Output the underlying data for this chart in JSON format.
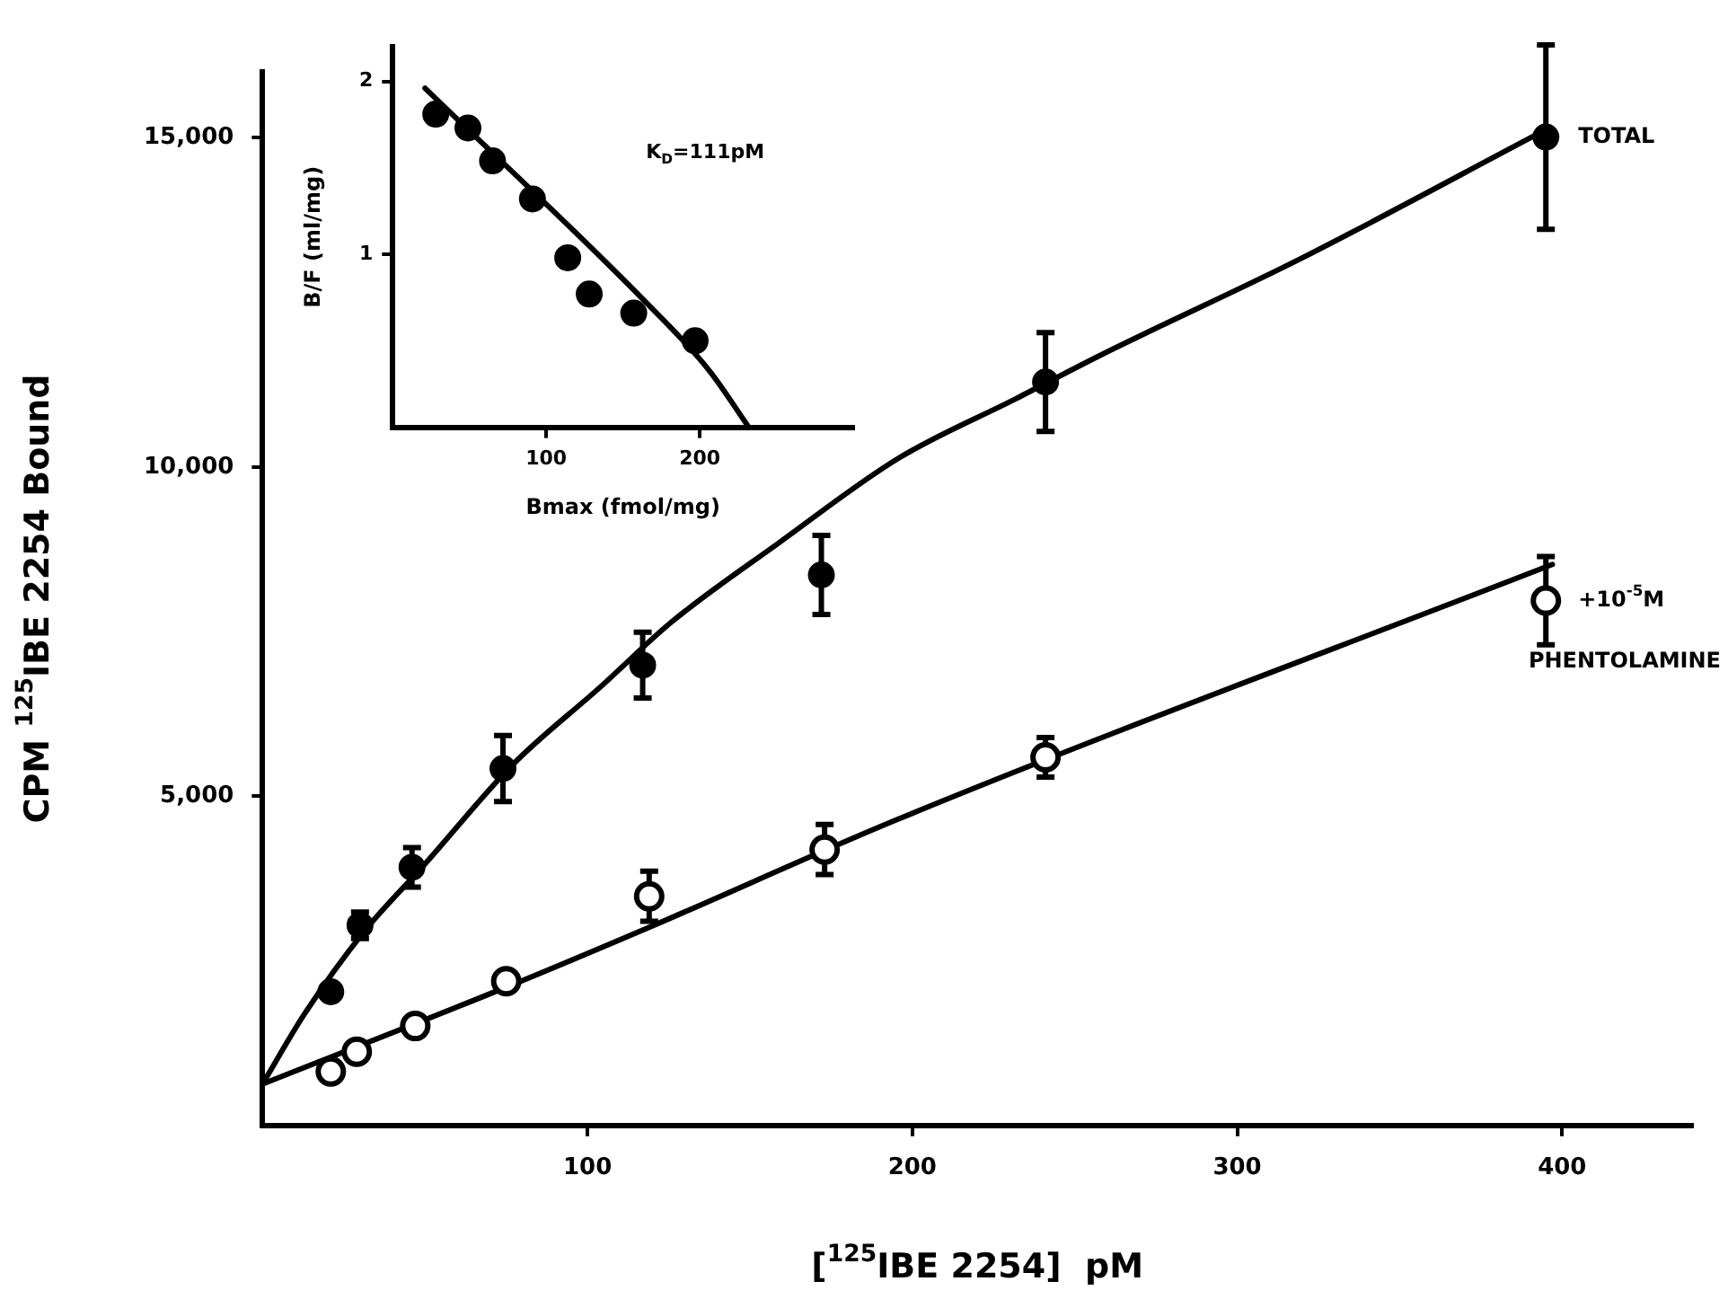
{
  "chart_data": [
    {
      "type": "scatter",
      "xlabel": "[$^{125}$IBE 2254]  pM",
      "ylabel": "CPM $^{125}$IBE 2254 Bound",
      "xlim": [
        0,
        440
      ],
      "ylim": [
        0,
        16000
      ],
      "xticks": [
        100,
        200,
        300,
        400
      ],
      "yticks": [
        {
          "value": 5000,
          "label": "5,000"
        },
        {
          "value": 10000,
          "label": "10,000"
        },
        {
          "value": 15000,
          "label": "15,000"
        }
      ],
      "grid": false,
      "legend": false,
      "marker": "circle",
      "series": [
        {
          "name": "TOTAL",
          "color": "#000000",
          "x": [
            21,
            30,
            46,
            74,
            117,
            172,
            241,
            395
          ],
          "values": [
            2030,
            3040,
            3920,
            5420,
            6990,
            8360,
            11290,
            15010
          ],
          "errors": [
            null,
            200,
            300,
            500,
            500,
            600,
            750,
            1400
          ]
        },
        {
          "name": "+10$^{-5}$M PHENTOLAMINE",
          "color": "#000000",
          "x": [
            21,
            29,
            47,
            75,
            119,
            173,
            241,
            395
          ],
          "values": [
            820,
            1120,
            1510,
            2190,
            3480,
            4190,
            5590,
            7970
          ],
          "errors": [
            null,
            null,
            null,
            null,
            380,
            380,
            300,
            670
          ]
        },
        {
          "type": "line",
          "marker": "none",
          "color": "#000000",
          "x": [
            0,
            13,
            31,
            50,
            77,
            104,
            126,
            159,
            196,
            232,
            258,
            319,
            393
          ],
          "values": [
            630,
            1700,
            2930,
            3970,
            5480,
            6660,
            7650,
            8850,
            10140,
            11040,
            11700,
            13150,
            15070
          ]
        },
        {
          "type": "line",
          "marker": "none",
          "color": "#000000",
          "x": [
            0,
            75,
            119,
            196,
            397
          ],
          "values": [
            630,
            2100,
            3010,
            4660,
            8520
          ]
        }
      ]
    },
    {
      "type": "scatter",
      "xlabel": "Bmax (fmol/mg)",
      "ylabel": "B/F (ml/mg)",
      "xlim": [
        0,
        300
      ],
      "ylim": [
        0,
        2.2
      ],
      "xticks": [
        100,
        200
      ],
      "yticks": [
        1,
        2
      ],
      "grid": false,
      "legend": false,
      "marker": "circle",
      "annotations": [
        "K$_{D}$=111pM"
      ],
      "series": [
        {
          "color": "#000000",
          "x": [
            28,
            49,
            65,
            91,
            114,
            128,
            157,
            197
          ],
          "values": [
            1.81,
            1.73,
            1.54,
            1.32,
            0.98,
            0.77,
            0.66,
            0.5
          ]
        },
        {
          "type": "line",
          "marker": "none",
          "color": "#000000",
          "x": [
            21,
            163,
            206,
            232
          ],
          "values": [
            1.96,
            0.74,
            0.33,
            0
          ]
        }
      ]
    }
  ]
}
